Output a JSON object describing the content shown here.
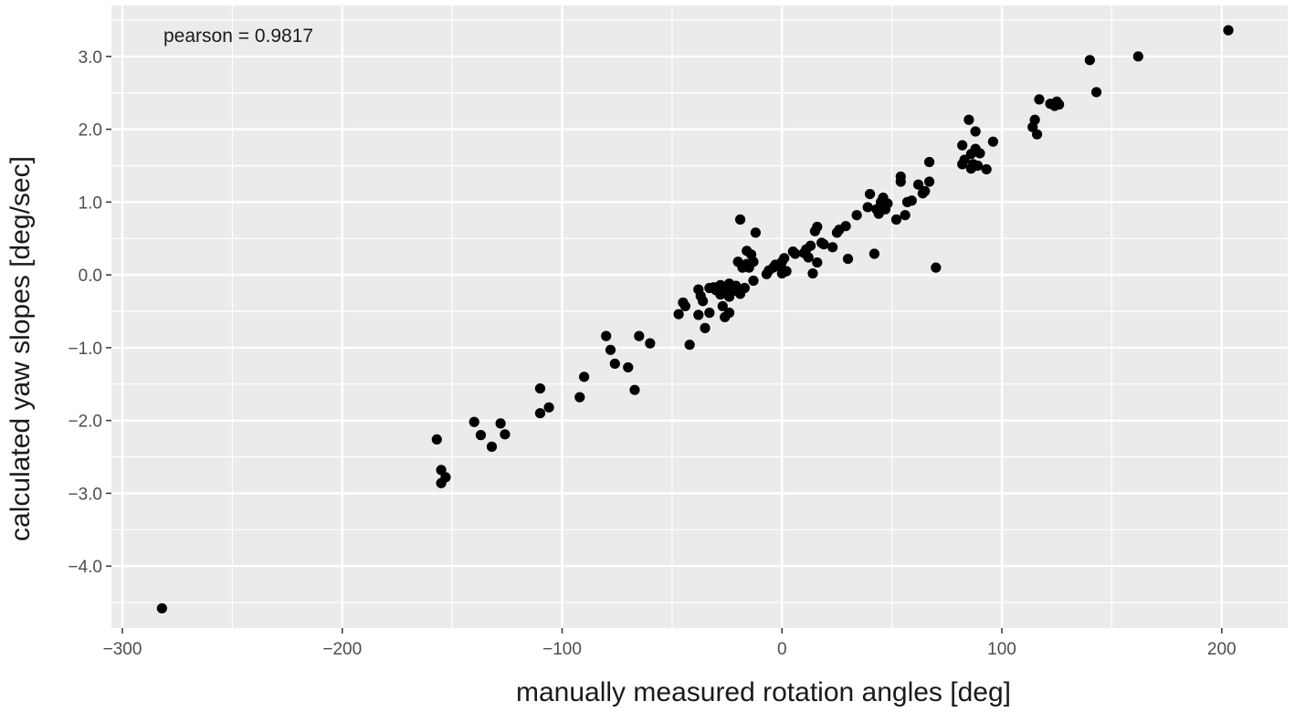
{
  "chart_data": {
    "type": "scatter",
    "title": "",
    "xlabel": "manually measured rotation angles [deg]",
    "ylabel": "calculated yaw slopes [deg/sec]",
    "annotation": "pearson = 0.9817",
    "xlim": [
      -305,
      230
    ],
    "ylim": [
      -4.85,
      3.7
    ],
    "x_ticks": [
      -300,
      -200,
      -100,
      0,
      100,
      200
    ],
    "x_tick_labels": [
      "−300",
      "−200",
      "−100",
      "0",
      "100",
      "200"
    ],
    "y_ticks": [
      -4.0,
      -3.0,
      -2.0,
      -1.0,
      0.0,
      1.0,
      2.0,
      3.0
    ],
    "y_tick_labels": [
      "−4.0",
      "−3.0",
      "−2.0",
      "−1.0",
      "0.0",
      "1.0",
      "2.0",
      "3.0"
    ],
    "grid": true,
    "legend": "none",
    "point_color": "#000000",
    "panel_color": "#ebebeb",
    "grid_color": "#ffffff",
    "points": [
      [
        -282,
        -4.58
      ],
      [
        -157,
        -2.26
      ],
      [
        -155,
        -2.68
      ],
      [
        -155,
        -2.86
      ],
      [
        -153,
        -2.78
      ],
      [
        -140,
        -2.02
      ],
      [
        -137,
        -2.2
      ],
      [
        -132,
        -2.36
      ],
      [
        -128,
        -2.04
      ],
      [
        -126,
        -2.19
      ],
      [
        -110,
        -1.56
      ],
      [
        -110,
        -1.9
      ],
      [
        -106,
        -1.82
      ],
      [
        -92,
        -1.68
      ],
      [
        -90,
        -1.4
      ],
      [
        -80,
        -0.84
      ],
      [
        -78,
        -1.03
      ],
      [
        -76,
        -1.22
      ],
      [
        -70,
        -1.27
      ],
      [
        -67,
        -1.58
      ],
      [
        -65,
        -0.84
      ],
      [
        -60,
        -0.94
      ],
      [
        -47,
        -0.54
      ],
      [
        -45,
        -0.38
      ],
      [
        -44,
        -0.43
      ],
      [
        -42,
        -0.96
      ],
      [
        -38,
        -0.55
      ],
      [
        -38,
        -0.2
      ],
      [
        -37,
        -0.29
      ],
      [
        -36,
        -0.36
      ],
      [
        -35,
        -0.73
      ],
      [
        -33,
        -0.18
      ],
      [
        -33,
        -0.52
      ],
      [
        -31,
        -0.17
      ],
      [
        -30,
        -0.21
      ],
      [
        -28,
        -0.14
      ],
      [
        -28,
        -0.27
      ],
      [
        -27,
        -0.43
      ],
      [
        -26,
        -0.58
      ],
      [
        -25,
        -0.2
      ],
      [
        -24,
        -0.12
      ],
      [
        -24,
        -0.3
      ],
      [
        -24,
        -0.52
      ],
      [
        -22,
        -0.22
      ],
      [
        -21,
        -0.15
      ],
      [
        -20,
        0.18
      ],
      [
        -19,
        -0.26
      ],
      [
        -19,
        0.76
      ],
      [
        -18,
        0.1
      ],
      [
        -17,
        -0.18
      ],
      [
        -16,
        0.15
      ],
      [
        -16,
        0.33
      ],
      [
        -15,
        0.1
      ],
      [
        -14,
        0.28
      ],
      [
        -13,
        0.18
      ],
      [
        -13,
        -0.08
      ],
      [
        -12,
        0.58
      ],
      [
        -7,
        0.01
      ],
      [
        -6,
        0.06
      ],
      [
        -4,
        0.1
      ],
      [
        -3,
        0.14
      ],
      [
        0,
        0.02
      ],
      [
        0,
        0.08
      ],
      [
        0,
        0.18
      ],
      [
        1,
        0.23
      ],
      [
        2,
        0.05
      ],
      [
        5,
        0.32
      ],
      [
        6,
        0.29
      ],
      [
        10,
        0.3
      ],
      [
        11,
        0.35
      ],
      [
        12,
        0.24
      ],
      [
        13,
        0.4
      ],
      [
        14,
        0.02
      ],
      [
        15,
        0.6
      ],
      [
        16,
        0.17
      ],
      [
        16,
        0.66
      ],
      [
        18,
        0.44
      ],
      [
        19,
        0.42
      ],
      [
        23,
        0.38
      ],
      [
        25,
        0.58
      ],
      [
        26,
        0.62
      ],
      [
        29,
        0.67
      ],
      [
        30,
        0.22
      ],
      [
        34,
        0.82
      ],
      [
        39,
        0.93
      ],
      [
        40,
        1.11
      ],
      [
        42,
        0.29
      ],
      [
        43,
        0.9
      ],
      [
        44,
        0.84
      ],
      [
        45,
        1.0
      ],
      [
        45,
        0.96
      ],
      [
        46,
        1.06
      ],
      [
        47,
        0.9
      ],
      [
        48,
        0.98
      ],
      [
        52,
        0.76
      ],
      [
        54,
        1.28
      ],
      [
        54,
        1.35
      ],
      [
        56,
        0.82
      ],
      [
        57,
        1.0
      ],
      [
        59,
        1.02
      ],
      [
        62,
        1.24
      ],
      [
        64,
        1.12
      ],
      [
        65,
        1.15
      ],
      [
        67,
        1.28
      ],
      [
        67,
        1.55
      ],
      [
        70,
        0.1
      ],
      [
        82,
        1.78
      ],
      [
        82,
        1.52
      ],
      [
        83,
        1.58
      ],
      [
        85,
        2.13
      ],
      [
        86,
        1.46
      ],
      [
        86,
        1.66
      ],
      [
        87,
        1.52
      ],
      [
        88,
        1.73
      ],
      [
        88,
        1.97
      ],
      [
        89,
        1.5
      ],
      [
        90,
        1.67
      ],
      [
        93,
        1.45
      ],
      [
        96,
        1.83
      ],
      [
        114,
        2.03
      ],
      [
        115,
        2.13
      ],
      [
        116,
        1.93
      ],
      [
        117,
        2.41
      ],
      [
        122,
        2.35
      ],
      [
        124,
        2.32
      ],
      [
        125,
        2.38
      ],
      [
        126,
        2.34
      ],
      [
        140,
        2.95
      ],
      [
        143,
        2.51
      ],
      [
        162,
        3.0
      ],
      [
        203,
        3.36
      ]
    ]
  }
}
